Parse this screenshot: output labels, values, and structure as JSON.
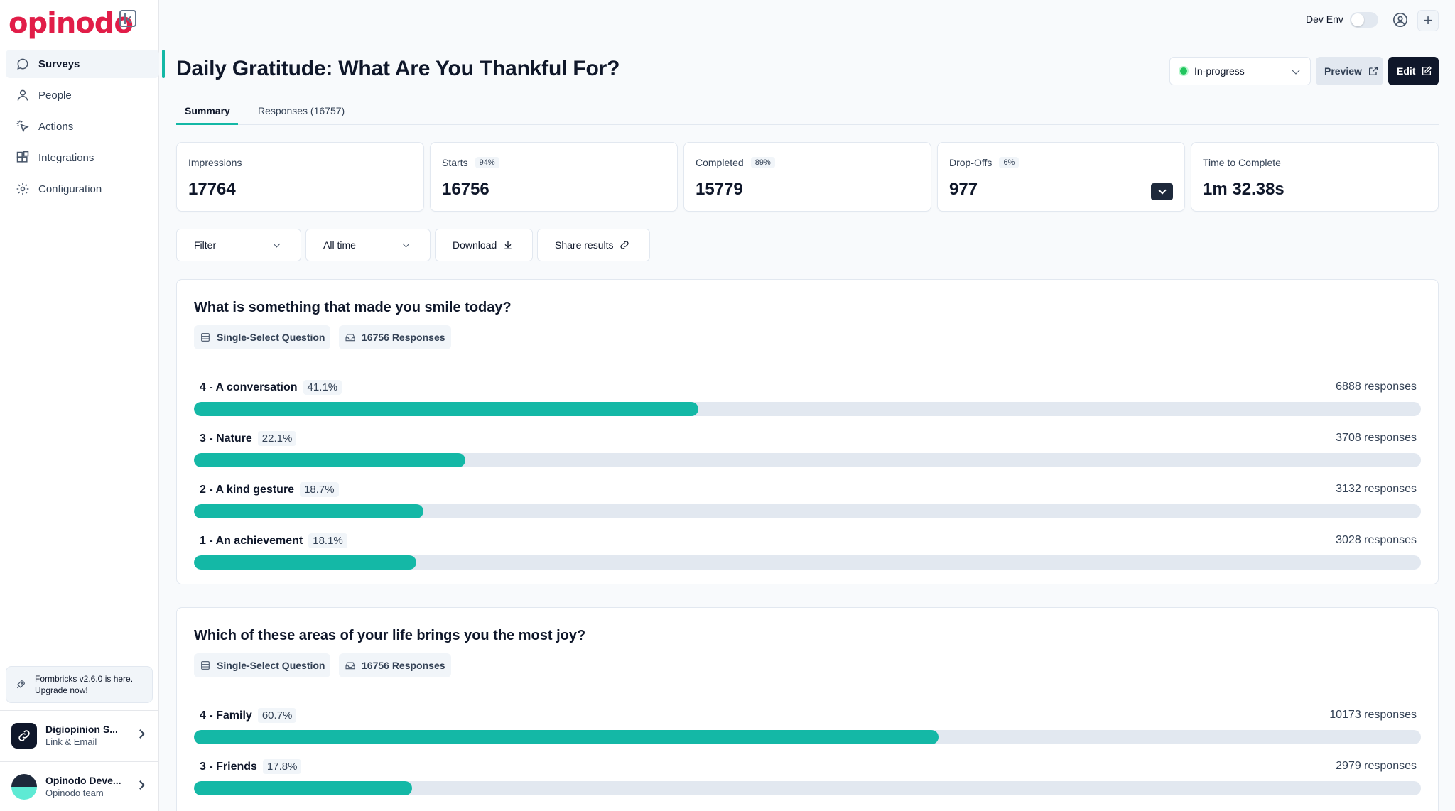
{
  "app": {
    "logo_text": "opinodo",
    "brand_color": "#e11d48",
    "accent_color": "#14b8a6"
  },
  "sidebar": {
    "items": [
      {
        "label": "Surveys",
        "icon": "chat-bubble-icon",
        "active": true
      },
      {
        "label": "People",
        "icon": "user-icon",
        "active": false
      },
      {
        "label": "Actions",
        "icon": "cursor-click-icon",
        "active": false
      },
      {
        "label": "Integrations",
        "icon": "blocks-icon",
        "active": false
      },
      {
        "label": "Configuration",
        "icon": "gear-icon",
        "active": false
      }
    ],
    "upgrade": {
      "line1": "Formbricks v2.6.0 is here.",
      "line2": "Upgrade now!"
    },
    "environment_account": {
      "name": "Digiopinion S...",
      "sub": "Link & Email"
    },
    "user_account": {
      "name": "Opinodo Deve...",
      "sub": "Opinodo team"
    }
  },
  "topbar": {
    "dev_env_label": "Dev Env",
    "dev_env_on": false
  },
  "header": {
    "title": "Daily Gratitude: What Are You Thankful For?",
    "status": "In-progress",
    "status_color": "#22c55e",
    "preview_label": "Preview",
    "edit_label": "Edit"
  },
  "tabs": [
    {
      "label": "Summary",
      "active": true
    },
    {
      "label": "Responses (16757)",
      "active": false
    }
  ],
  "stats": [
    {
      "label": "Impressions",
      "badge": "",
      "value": "17764"
    },
    {
      "label": "Starts",
      "badge": "94%",
      "value": "16756"
    },
    {
      "label": "Completed",
      "badge": "89%",
      "value": "15779"
    },
    {
      "label": "Drop-Offs",
      "badge": "6%",
      "value": "977"
    },
    {
      "label": "Time to Complete",
      "badge": "",
      "value": "1m 32.38s"
    }
  ],
  "controls": {
    "filter": "Filter",
    "time_range": "All time",
    "download": "Download",
    "share": "Share results"
  },
  "questions": [
    {
      "title": "What is something that made you smile today?",
      "type": "Single-Select Question",
      "responses": "16756 Responses",
      "options": [
        {
          "label": "4 - A conversation",
          "pct": "41.1%",
          "count": "6888 responses",
          "fraction": 0.411
        },
        {
          "label": "3 - Nature",
          "pct": "22.1%",
          "count": "3708 responses",
          "fraction": 0.221
        },
        {
          "label": "2 - A kind gesture",
          "pct": "18.7%",
          "count": "3132 responses",
          "fraction": 0.187
        },
        {
          "label": "1 - An achievement",
          "pct": "18.1%",
          "count": "3028 responses",
          "fraction": 0.181
        }
      ]
    },
    {
      "title": "Which of these areas of your life brings you the most joy?",
      "type": "Single-Select Question",
      "responses": "16756 Responses",
      "options": [
        {
          "label": "4 - Family",
          "pct": "60.7%",
          "count": "10173 responses",
          "fraction": 0.607
        },
        {
          "label": "3 - Friends",
          "pct": "17.8%",
          "count": "2979 responses",
          "fraction": 0.178
        }
      ]
    }
  ]
}
